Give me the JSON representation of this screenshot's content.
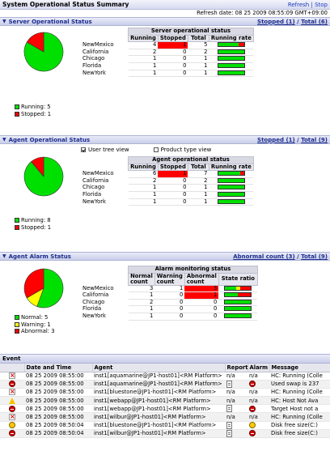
{
  "header": {
    "title": "System Operational Status Summary",
    "refresh_label": "Refresh",
    "stop_label": "Stop",
    "separator": "|",
    "refresh_date": "Refresh date: 08 25 2009 08:55:09 GMT+09:00"
  },
  "server": {
    "title": "Server Operational Status",
    "summary_prefix": "Stopped (1)",
    "summary_sep": " / ",
    "summary_total": "Total (6)",
    "table_title": "Server operational status",
    "columns": [
      "Running",
      "Stopped",
      "Total",
      "Running rate"
    ],
    "rows": [
      {
        "name": "NewMexico",
        "running": "4",
        "stopped": "1",
        "total": "5",
        "rate": 0.8,
        "alert": true
      },
      {
        "name": "California",
        "running": "2",
        "stopped": "0",
        "total": "2",
        "rate": 1.0,
        "alert": false
      },
      {
        "name": "Chicago",
        "running": "1",
        "stopped": "0",
        "total": "1",
        "rate": 1.0,
        "alert": false
      },
      {
        "name": "Florida",
        "running": "1",
        "stopped": "0",
        "total": "1",
        "rate": 1.0,
        "alert": false
      },
      {
        "name": "NewYork",
        "running": "1",
        "stopped": "0",
        "total": "1",
        "rate": 1.0,
        "alert": false
      }
    ],
    "legend": [
      {
        "label": "Running: 5",
        "color": "#00e000"
      },
      {
        "label": "Stopped: 1",
        "color": "#ff0000"
      }
    ],
    "pie": [
      5,
      1
    ]
  },
  "agent": {
    "title": "Agent Operational Status",
    "summary_prefix": "Stopped (1)",
    "summary_sep": " / ",
    "summary_total": "Total (9)",
    "user_tree_label": "User tree view",
    "product_type_label": "Product type view",
    "table_title": "Agent operational status",
    "columns": [
      "Running",
      "Stopped",
      "Total",
      "Running rate"
    ],
    "rows": [
      {
        "name": "NewMexico",
        "running": "6",
        "stopped": "1",
        "total": "7",
        "rate": 0.857,
        "alert": true
      },
      {
        "name": "California",
        "running": "2",
        "stopped": "0",
        "total": "2",
        "rate": 1.0,
        "alert": false
      },
      {
        "name": "Chicago",
        "running": "1",
        "stopped": "0",
        "total": "1",
        "rate": 1.0,
        "alert": false
      },
      {
        "name": "Florida",
        "running": "1",
        "stopped": "0",
        "total": "1",
        "rate": 1.0,
        "alert": false
      },
      {
        "name": "NewYork",
        "running": "1",
        "stopped": "0",
        "total": "1",
        "rate": 1.0,
        "alert": false
      }
    ],
    "legend": [
      {
        "label": "Running: 8",
        "color": "#00e000"
      },
      {
        "label": "Stopped: 1",
        "color": "#ff0000"
      }
    ],
    "pie": [
      8,
      1
    ]
  },
  "alarm": {
    "title": "Agent Alarm Status",
    "summary_prefix": "Abnormal count (3)",
    "summary_sep": " / ",
    "summary_total": "Total (9)",
    "table_title": "Alarm monitoring status",
    "col_normal_1": "Normal",
    "col_normal_2": "count",
    "col_warning_1": "Warning",
    "col_warning_2": "count",
    "col_abnormal_1": "Abnormal",
    "col_abnormal_2": "count",
    "col_state": "State ratio",
    "rows": [
      {
        "name": "NewMexico",
        "normal": "3",
        "warning": "1",
        "abnormal": "3",
        "g": 0.43,
        "y": 0.14,
        "r": 0.43,
        "alert": true
      },
      {
        "name": "California",
        "normal": "1",
        "warning": "0",
        "abnormal": "1",
        "g": 0.5,
        "y": 0,
        "r": 0.5,
        "alert": true
      },
      {
        "name": "Chicago",
        "normal": "2",
        "warning": "0",
        "abnormal": "0",
        "g": 1.0,
        "y": 0,
        "r": 0,
        "alert": false
      },
      {
        "name": "Florida",
        "normal": "1",
        "warning": "0",
        "abnormal": "0",
        "g": 1.0,
        "y": 0,
        "r": 0,
        "alert": false
      },
      {
        "name": "NewYork",
        "normal": "1",
        "warning": "0",
        "abnormal": "0",
        "g": 1.0,
        "y": 0,
        "r": 0,
        "alert": false
      }
    ],
    "legend": [
      {
        "label": "Normal: 5",
        "color": "#00e000"
      },
      {
        "label": "Warning: 1",
        "color": "#ffff00"
      },
      {
        "label": "Abnormal: 3",
        "color": "#ff0000"
      }
    ],
    "pie": [
      5,
      1,
      3
    ]
  },
  "event": {
    "title": "Event",
    "columns": [
      "Date and Time",
      "Agent",
      "Report",
      "Alarm",
      "Message"
    ],
    "rows": [
      {
        "icon": "redx",
        "date": "08 25 2009 08:55:00",
        "agent": "inst1[aquamarine@JP1-host01]<RM Platform>",
        "report": "n/a",
        "alarm": "n/a",
        "message": "HC: Running (Colle"
      },
      {
        "icon": "stop",
        "date": "08 25 2009 08:55:00",
        "agent": "inst1[aquamarine@JP1-host01]<RM Platform>",
        "report": "doc",
        "alarm": "stop",
        "message": "Used swap is 237"
      },
      {
        "icon": "redx",
        "date": "08 25 2009 08:55:00",
        "agent": "inst1[bluestone@JP1-host01]<RM Platform>",
        "report": "n/a",
        "alarm": "n/a",
        "message": "HC: Running (Colle"
      },
      {
        "icon": "warn",
        "date": "08 25 2009 08:55:00",
        "agent": "inst1[webapp@JP1-host01]<RM Platform>",
        "report": "n/a",
        "alarm": "n/a",
        "message": "HC: Host Not Ava"
      },
      {
        "icon": "stop",
        "date": "08 25 2009 08:55:00",
        "agent": "inst1[webapp@JP1-host01]<RM Platform>",
        "report": "doc",
        "alarm": "stop",
        "message": "Target Host not a"
      },
      {
        "icon": "redx",
        "date": "08 25 2009 08:55:00",
        "agent": "inst1[wilbur@JP1-host01]<RM Platform>",
        "report": "n/a",
        "alarm": "n/a",
        "message": "HC: Running (Colle"
      },
      {
        "icon": "yel",
        "date": "08 25 2009 08:50:04",
        "agent": "inst1[bluestone@JP1-host01]<RM Platform>",
        "report": "doc",
        "alarm": "yel",
        "message": "Disk free size(C:)"
      },
      {
        "icon": "stop",
        "date": "08 25 2009 08:50:04",
        "agent": "inst1[wilbur@JP1-host01]<RM Platform>",
        "report": "doc",
        "alarm": "stop",
        "message": "Disk free size(C:)"
      }
    ]
  }
}
